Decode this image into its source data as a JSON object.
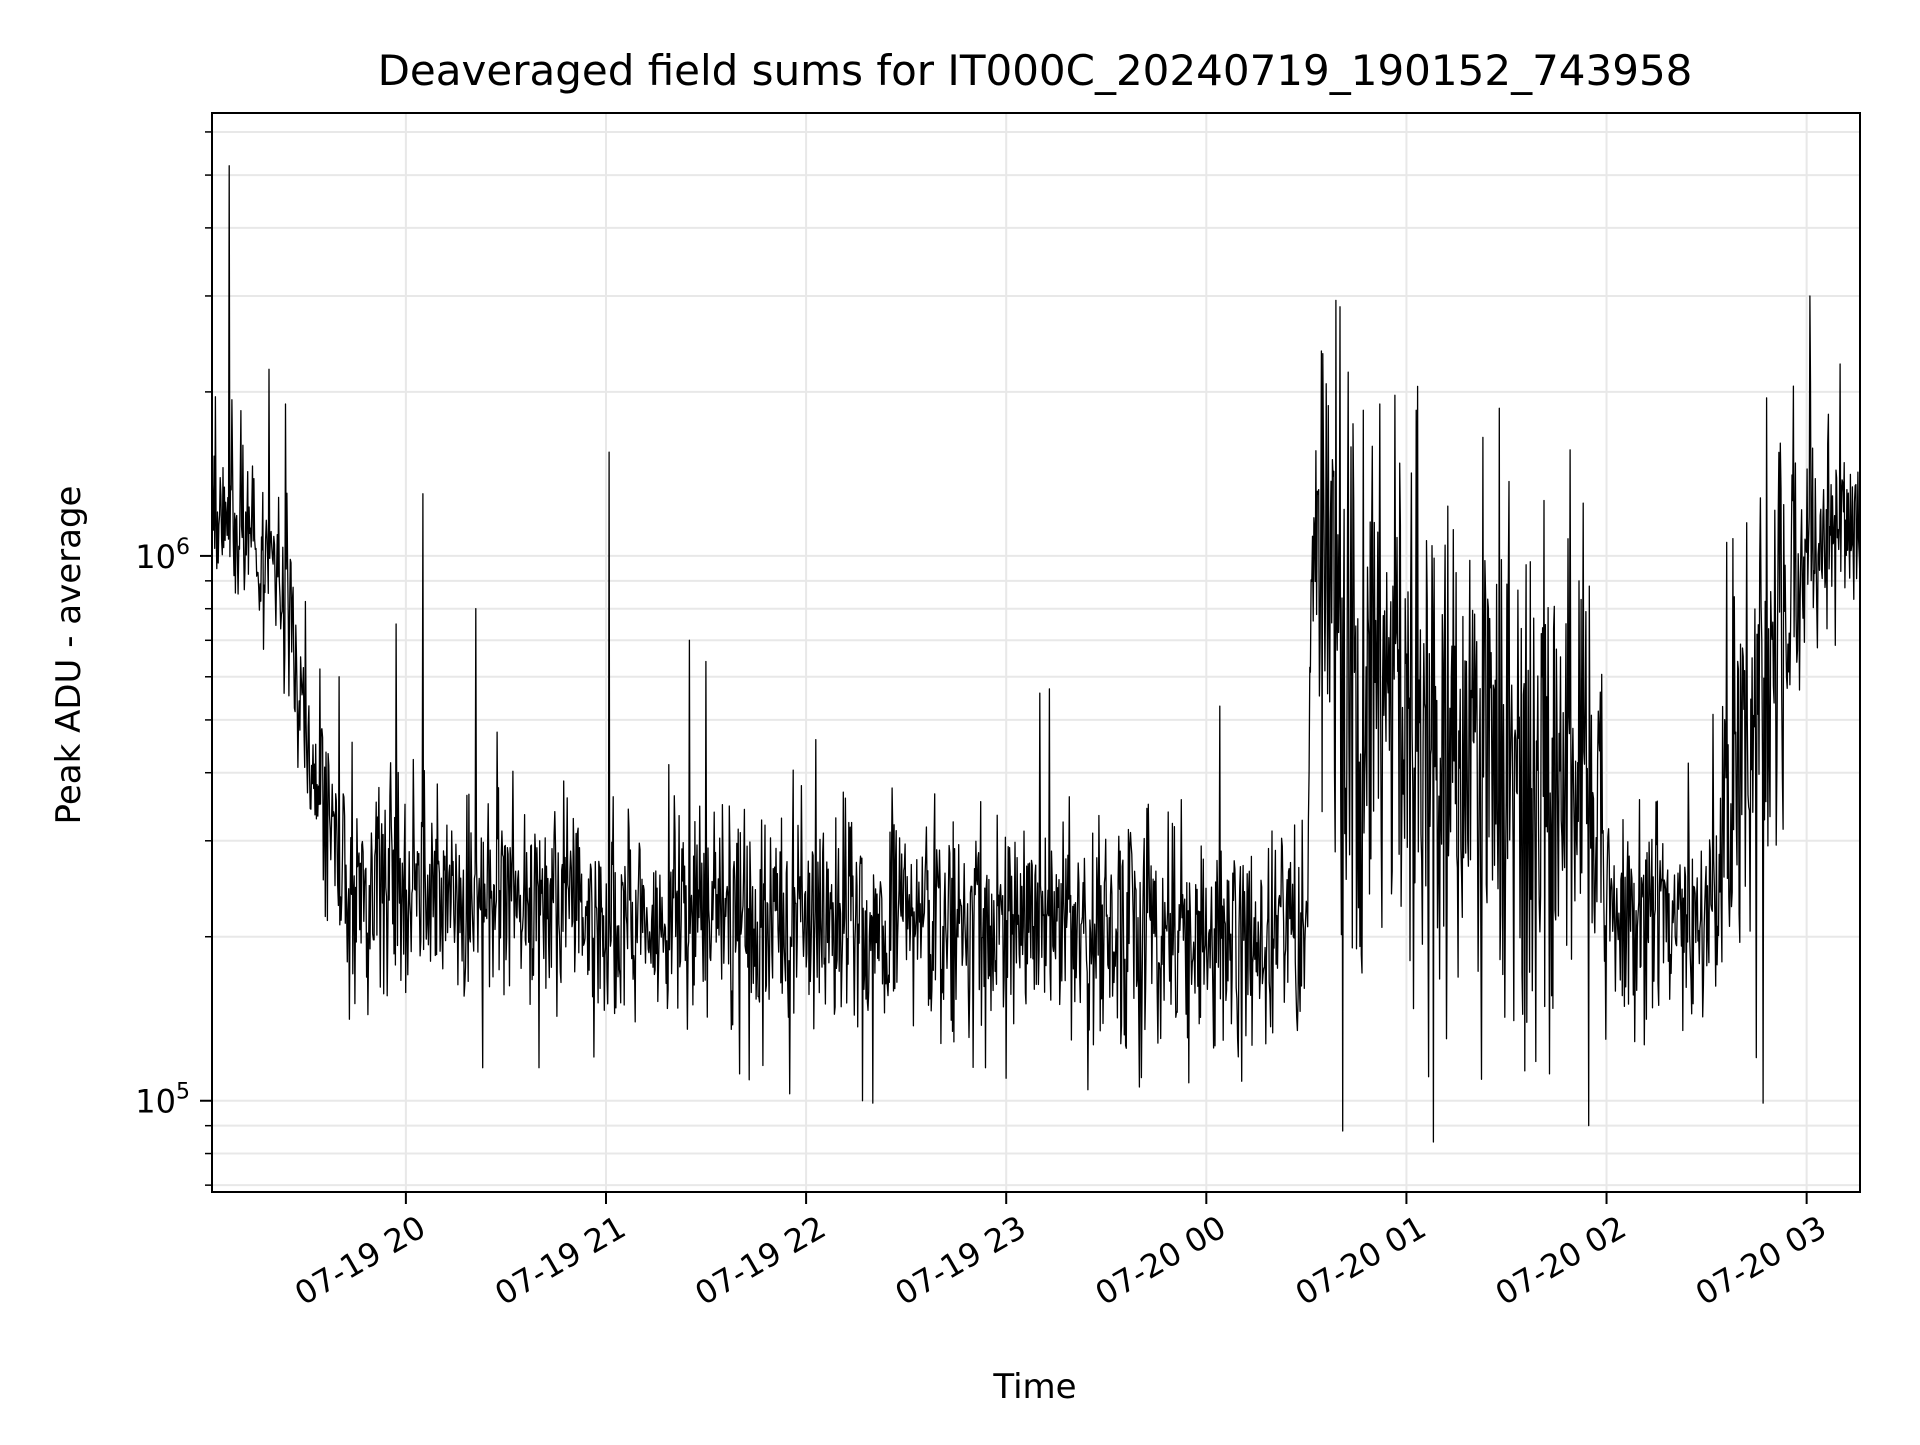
{
  "chart_data": {
    "type": "line",
    "title": "Deaveraged field sums for IT000C_20240719_190152_743958",
    "xlabel": "Time",
    "ylabel": "Peak ADU - average",
    "x_start": "2024-07-19T19:01:52",
    "x_end": "2024-07-20T03:16:00",
    "xlim": [
      "2024-07-19T19:01:52",
      "2024-07-20T03:16:00"
    ],
    "ylim": [
      68000,
      6500000
    ],
    "yscale": "log",
    "grid": true,
    "line_color": "#000000",
    "grid_color": "#e8e8e8",
    "x_ticks": [
      {
        "value": "2024-07-19T20:00",
        "label": "07-19 20"
      },
      {
        "value": "2024-07-19T21:00",
        "label": "07-19 21"
      },
      {
        "value": "2024-07-19T22:00",
        "label": "07-19 22"
      },
      {
        "value": "2024-07-19T23:00",
        "label": "07-19 23"
      },
      {
        "value": "2024-07-20T00:00",
        "label": "07-20 00"
      },
      {
        "value": "2024-07-20T01:00",
        "label": "07-20 01"
      },
      {
        "value": "2024-07-20T02:00",
        "label": "07-20 02"
      },
      {
        "value": "2024-07-20T03:00",
        "label": "07-20 03"
      }
    ],
    "y_ticks": [
      {
        "value": 100000,
        "base": "10",
        "exp": "5"
      },
      {
        "value": 1000000,
        "base": "10",
        "exp": "6"
      }
    ],
    "series": [
      {
        "envelope": [
          {
            "x": "2024-07-19T19:01:52",
            "y": 1300000,
            "spread": 0.12
          },
          {
            "x": "2024-07-19T19:10",
            "y": 1200000,
            "spread": 0.13
          },
          {
            "x": "2024-07-19T19:20",
            "y": 1000000,
            "spread": 0.14
          },
          {
            "x": "2024-07-19T19:27",
            "y": 700000,
            "spread": 0.15
          },
          {
            "x": "2024-07-19T19:33",
            "y": 400000,
            "spread": 0.15
          },
          {
            "x": "2024-07-19T19:40",
            "y": 270000,
            "spread": 0.16
          },
          {
            "x": "2024-07-19T20:00",
            "y": 250000,
            "spread": 0.15
          },
          {
            "x": "2024-07-19T21:00",
            "y": 215000,
            "spread": 0.15
          },
          {
            "x": "2024-07-19T22:00",
            "y": 215000,
            "spread": 0.15
          },
          {
            "x": "2024-07-19T23:00",
            "y": 205000,
            "spread": 0.15
          },
          {
            "x": "2024-07-20T00:00",
            "y": 200000,
            "spread": 0.15
          },
          {
            "x": "2024-07-20T00:30",
            "y": 200000,
            "spread": 0.15
          },
          {
            "x": "2024-07-20T00:32",
            "y": 1100000,
            "spread": 0.2
          },
          {
            "x": "2024-07-20T00:40",
            "y": 900000,
            "spread": 0.35
          },
          {
            "x": "2024-07-20T00:44",
            "y": 600000,
            "spread": 0.38
          },
          {
            "x": "2024-07-20T01:00",
            "y": 550000,
            "spread": 0.38
          },
          {
            "x": "2024-07-20T01:20",
            "y": 500000,
            "spread": 0.38
          },
          {
            "x": "2024-07-20T01:40",
            "y": 380000,
            "spread": 0.35
          },
          {
            "x": "2024-07-20T01:55",
            "y": 400000,
            "spread": 0.32
          },
          {
            "x": "2024-07-20T02:02",
            "y": 230000,
            "spread": 0.15
          },
          {
            "x": "2024-07-20T02:30",
            "y": 215000,
            "spread": 0.15
          },
          {
            "x": "2024-07-20T02:36",
            "y": 350000,
            "spread": 0.3
          },
          {
            "x": "2024-07-20T02:50",
            "y": 650000,
            "spread": 0.35
          },
          {
            "x": "2024-07-20T03:00",
            "y": 1100000,
            "spread": 0.15
          },
          {
            "x": "2024-07-20T03:16:00",
            "y": 1150000,
            "spread": 0.12
          }
        ],
        "spikes": [
          {
            "x": "2024-07-19T19:07",
            "y": 5200000
          },
          {
            "x": "2024-07-19T19:19",
            "y": 2200000
          },
          {
            "x": "2024-07-19T19:24",
            "y": 1900000
          },
          {
            "x": "2024-07-19T19:40",
            "y": 600000
          },
          {
            "x": "2024-07-19T19:57",
            "y": 750000
          },
          {
            "x": "2024-07-19T20:05",
            "y": 1300000
          },
          {
            "x": "2024-07-19T20:21",
            "y": 800000
          },
          {
            "x": "2024-07-19T21:01",
            "y": 1550000
          },
          {
            "x": "2024-07-19T21:25",
            "y": 700000
          },
          {
            "x": "2024-07-19T21:30",
            "y": 640000
          },
          {
            "x": "2024-07-19T22:03",
            "y": 460000
          },
          {
            "x": "2024-07-19T23:10",
            "y": 560000
          },
          {
            "x": "2024-07-19T23:13",
            "y": 570000
          },
          {
            "x": "2024-07-20T00:04",
            "y": 530000
          },
          {
            "x": "2024-07-20T00:35",
            "y": 2350000
          },
          {
            "x": "2024-07-20T00:47",
            "y": 1850000
          },
          {
            "x": "2024-07-20T00:52",
            "y": 1900000
          },
          {
            "x": "2024-07-20T01:03",
            "y": 1850000
          },
          {
            "x": "2024-07-20T01:23",
            "y": 1650000
          },
          {
            "x": "2024-07-20T01:53",
            "y": 1250000
          },
          {
            "x": "2024-07-20T02:42",
            "y": 1150000
          },
          {
            "x": "2024-07-20T02:48",
            "y": 1950000
          },
          {
            "x": "2024-07-20T02:56",
            "y": 2050000
          },
          {
            "x": "2024-07-20T03:01",
            "y": 3000000
          },
          {
            "x": "2024-07-20T03:10",
            "y": 2250000
          }
        ],
        "dips": [
          {
            "x": "2024-07-19T20:23",
            "y": 115000
          },
          {
            "x": "2024-07-19T20:40",
            "y": 115000
          },
          {
            "x": "2024-07-19T21:40",
            "y": 112000
          },
          {
            "x": "2024-07-19T21:55",
            "y": 103000
          },
          {
            "x": "2024-07-19T22:17",
            "y": 100000
          },
          {
            "x": "2024-07-19T22:20",
            "y": 99000
          },
          {
            "x": "2024-07-19T23:00",
            "y": 110000
          },
          {
            "x": "2024-07-19T23:40",
            "y": 106000
          },
          {
            "x": "2024-07-20T00:41",
            "y": 88000
          },
          {
            "x": "2024-07-20T01:08",
            "y": 84000
          },
          {
            "x": "2024-07-20T01:12",
            "y": 130000
          },
          {
            "x": "2024-07-20T01:43",
            "y": 112000
          },
          {
            "x": "2024-07-20T02:47",
            "y": 99000
          },
          {
            "x": "2024-07-20T02:45",
            "y": 120000
          }
        ]
      }
    ]
  }
}
